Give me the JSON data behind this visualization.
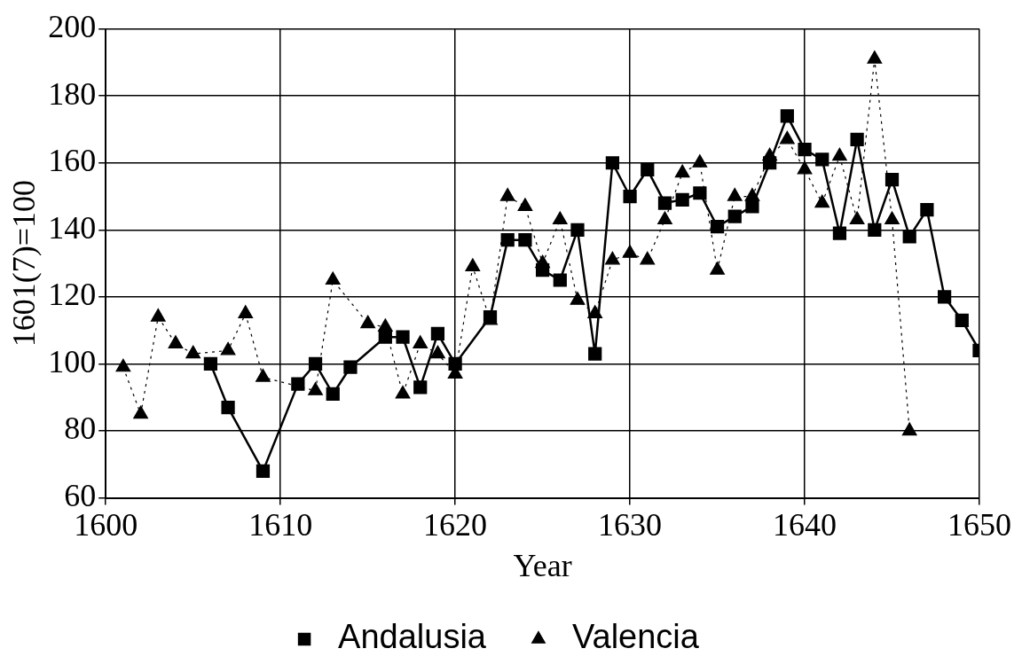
{
  "chart_data": {
    "type": "line",
    "xlabel": "Year",
    "ylabel": "1601(7)=100",
    "xlim": [
      1600,
      1650
    ],
    "xticks": [
      1600,
      1610,
      1620,
      1630,
      1640,
      1650
    ],
    "ylim": [
      60,
      200
    ],
    "yticks": [
      60,
      80,
      100,
      120,
      140,
      160,
      180,
      200
    ],
    "grid": true,
    "legend": "bottom",
    "series": [
      {
        "name": "Andalusia",
        "color": "#000000",
        "marker": "square",
        "line_style": "solid",
        "x": [
          1606,
          1607,
          1609,
          1611,
          1612,
          1613,
          1614,
          1616,
          1617,
          1618,
          1619,
          1620,
          1622,
          1623,
          1624,
          1625,
          1626,
          1627,
          1628,
          1629,
          1630,
          1631,
          1632,
          1633,
          1634,
          1635,
          1636,
          1637,
          1638,
          1639,
          1640,
          1641,
          1642,
          1643,
          1644,
          1645,
          1646,
          1647,
          1648,
          1649,
          1650
        ],
        "values": [
          100,
          87,
          68,
          94,
          100,
          91,
          99,
          108,
          108,
          93,
          109,
          100,
          114,
          137,
          137,
          128,
          125,
          140,
          103,
          160,
          150,
          158,
          148,
          149,
          151,
          141,
          144,
          147,
          160,
          174,
          164,
          161,
          139,
          167,
          140,
          155,
          138,
          146,
          120,
          113,
          104
        ]
      },
      {
        "name": "Valencia",
        "color": "#000000",
        "marker": "triangle",
        "line_style": "dotted",
        "x": [
          1601,
          1602,
          1603,
          1604,
          1605,
          1607,
          1608,
          1609,
          1612,
          1613,
          1615,
          1616,
          1617,
          1618,
          1619,
          1620,
          1621,
          1622,
          1623,
          1624,
          1625,
          1626,
          1627,
          1628,
          1629,
          1630,
          1631,
          1632,
          1633,
          1634,
          1635,
          1636,
          1637,
          1638,
          1639,
          1640,
          1641,
          1642,
          1643,
          1644,
          1645,
          1646
        ],
        "values": [
          99,
          85,
          114,
          106,
          103,
          104,
          115,
          96,
          92,
          125,
          112,
          111,
          91,
          106,
          103,
          97,
          129,
          113,
          150,
          147,
          130,
          143,
          119,
          115,
          131,
          133,
          131,
          143,
          157,
          160,
          128,
          150,
          150,
          162,
          167,
          158,
          148,
          162,
          143,
          191,
          143,
          80
        ]
      }
    ]
  }
}
